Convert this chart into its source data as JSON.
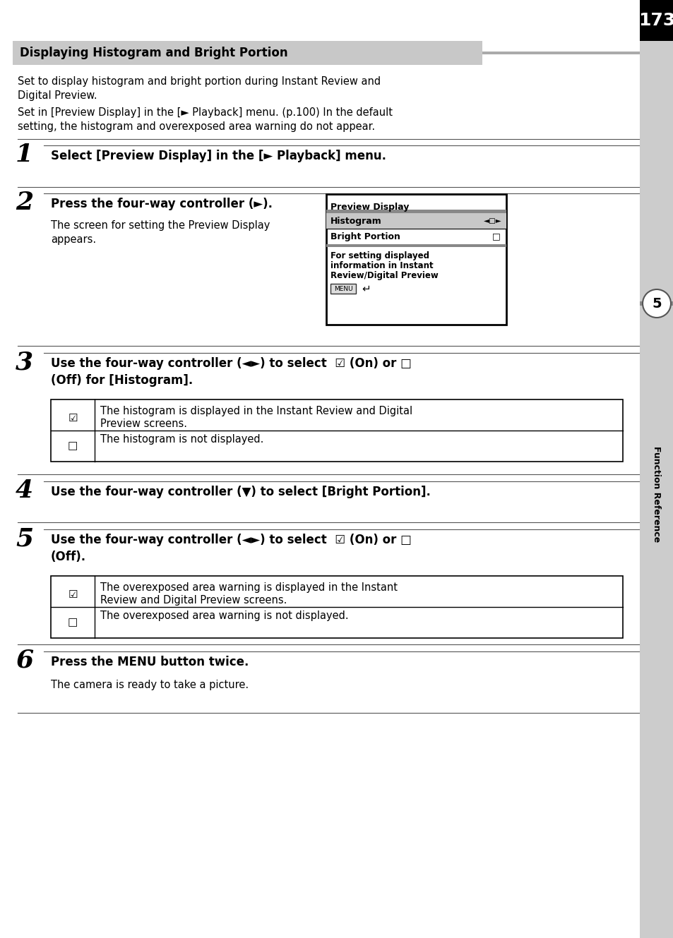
{
  "page_number": "173",
  "title": "Displaying Histogram and Bright Portion",
  "intro_line1": "Set to display histogram and bright portion during Instant Review and",
  "intro_line2": "Digital Preview.",
  "intro_line3": "Set in [Preview Display] in the [► Playback] menu. (p.100) In the default",
  "intro_line4": "setting, the histogram and overexposed area warning do not appear.",
  "step1_bold": "Select [Preview Display] in the [► Playback] menu.",
  "step2_bold": "Press the four-way controller (►).",
  "step2_body1": "The screen for setting the Preview Display",
  "step2_body2": "appears.",
  "menu_title": "Preview Display",
  "menu_row1": "Histogram",
  "menu_row1_arrows": "◄□►",
  "menu_row2": "Bright Portion",
  "menu_row2_box": "□",
  "menu_footer1": "For setting displayed",
  "menu_footer2": "information in Instant",
  "menu_footer3": "Review/Digital Preview",
  "menu_btn": "MENU",
  "menu_return": "↵",
  "step3_line1": "Use the four-way controller (◄►) to select  ☑ (On) or □",
  "step3_line2": "(Off) for [Histogram].",
  "table1_r1_icon": "☑",
  "table1_r1_text1": "The histogram is displayed in the Instant Review and Digital",
  "table1_r1_text2": "Preview screens.",
  "table1_r2_icon": "□",
  "table1_r2_text": "The histogram is not displayed.",
  "step4_bold": "Use the four-way controller (▼) to select [Bright Portion].",
  "step5_line1": "Use the four-way controller (◄►) to select  ☑ (On) or □",
  "step5_line2": "(Off).",
  "table2_r1_icon": "☑",
  "table2_r1_text1": "The overexposed area warning is displayed in the Instant",
  "table2_r1_text2": "Review and Digital Preview screens.",
  "table2_r2_icon": "□",
  "table2_r2_text": "The overexposed area warning is not displayed.",
  "step6_bold": "Press the MENU button twice.",
  "step6_body": "The camera is ready to take a picture.",
  "sidebar_text": "Function Reference",
  "sidebar_number": "5",
  "bg_color": "#ffffff",
  "header_bg": "#c8c8c8",
  "sidebar_bg": "#cccccc",
  "page_num_bg": "#000000",
  "page_num_color": "#ffffff",
  "menu_highlight_bg": "#bbbbbb",
  "menu_border": "#000000",
  "table_border": "#000000"
}
